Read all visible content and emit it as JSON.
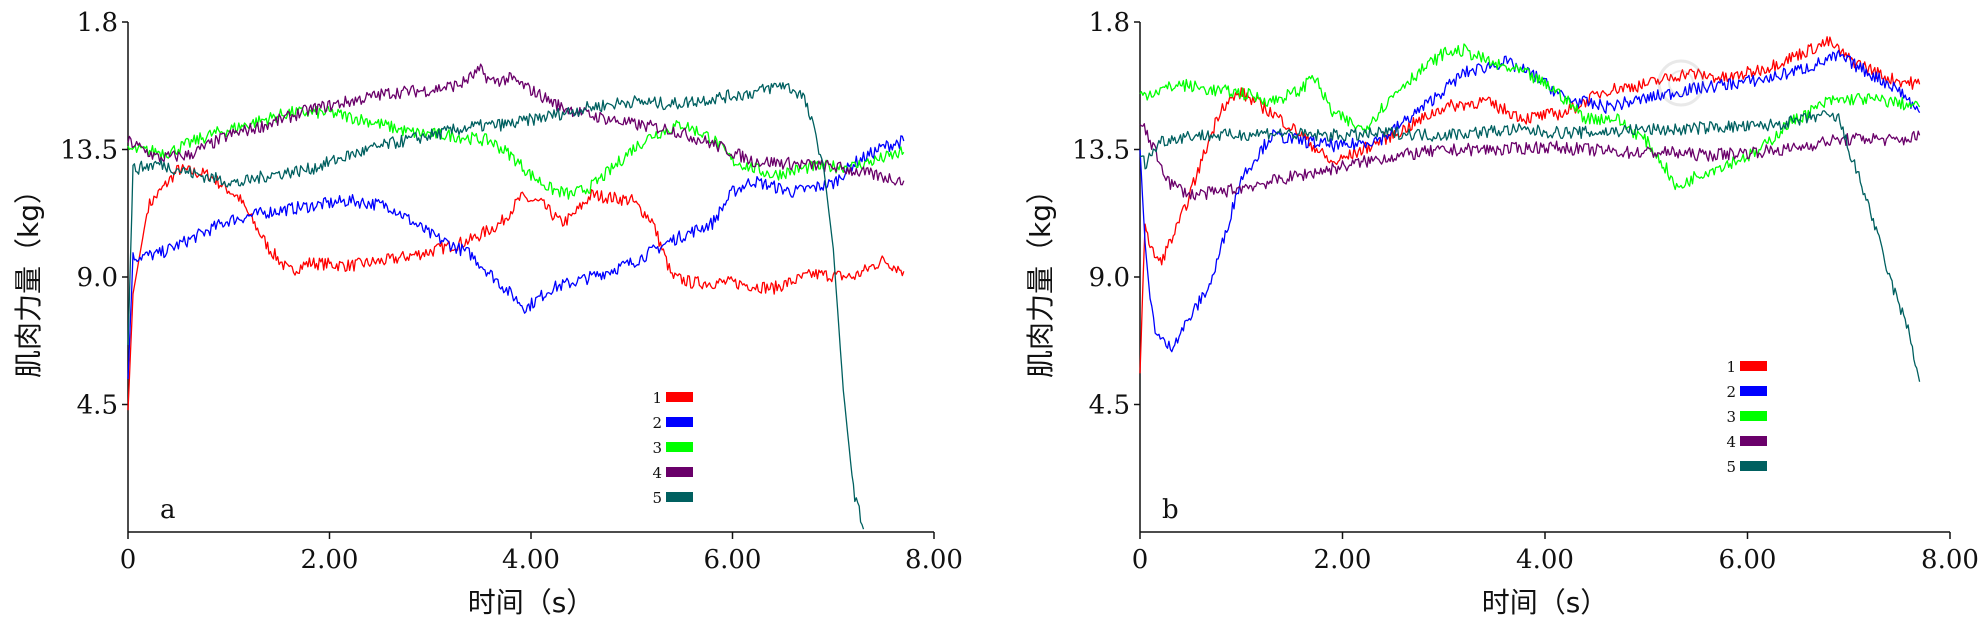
{
  "chart_data": [
    {
      "type": "line",
      "panel_label": "a",
      "xlabel": "时间（s）",
      "ylabel": "肌肉力量（kg）",
      "xlim": [
        0,
        8
      ],
      "ylim": [
        0,
        18
      ],
      "x_tick_labels": [
        "0",
        "2.00",
        "4.00",
        "6.00",
        "8.00"
      ],
      "y_tick_labels": [
        "4.5",
        "9.0",
        "13.5",
        "1.8"
      ],
      "legend_position": "bottom-center",
      "series": [
        {
          "name": "1",
          "color": "#ff0000",
          "x": [
            0,
            0.05,
            0.2,
            0.5,
            0.8,
            1.1,
            1.4,
            1.6,
            1.8,
            2.2,
            2.6,
            3.0,
            3.4,
            3.7,
            3.9,
            4.1,
            4.3,
            4.4,
            4.6,
            5.0,
            5.2,
            5.4,
            5.6,
            6.0,
            6.4,
            6.8,
            7.2,
            7.5,
            7.7
          ],
          "y": [
            4.3,
            8.4,
            11.5,
            12.8,
            12.6,
            11.8,
            10.0,
            9.2,
            9.5,
            9.4,
            9.6,
            9.9,
            10.3,
            10.9,
            11.8,
            11.6,
            10.9,
            11.1,
            11.9,
            11.7,
            11.0,
            9.0,
            8.8,
            8.8,
            8.6,
            9.1,
            9.0,
            9.6,
            9.2
          ]
        },
        {
          "name": "2",
          "color": "#0000ff",
          "x": [
            0,
            0.05,
            0.3,
            0.6,
            1.0,
            1.4,
            1.8,
            2.2,
            2.6,
            3.0,
            3.4,
            3.6,
            3.8,
            3.95,
            4.2,
            4.6,
            5.0,
            5.4,
            5.8,
            6.0,
            6.2,
            6.6,
            7.0,
            7.2,
            7.5,
            7.7
          ],
          "y": [
            5.4,
            9.7,
            9.8,
            10.3,
            11.0,
            11.3,
            11.5,
            11.7,
            11.5,
            10.5,
            9.8,
            9.1,
            8.4,
            7.9,
            8.6,
            9.0,
            9.5,
            10.3,
            10.9,
            12.0,
            12.4,
            12.0,
            12.3,
            13.0,
            13.6,
            13.8
          ]
        },
        {
          "name": "3",
          "color": "#00ff00",
          "x": [
            0,
            0.4,
            0.8,
            1.2,
            1.6,
            2.0,
            2.4,
            2.8,
            3.2,
            3.6,
            3.8,
            4.0,
            4.2,
            4.4,
            4.6,
            4.8,
            5.0,
            5.2,
            5.5,
            5.8,
            6.0,
            6.4,
            6.8,
            7.2,
            7.5,
            7.7
          ],
          "y": [
            13.5,
            13.4,
            14.0,
            14.4,
            14.8,
            14.8,
            14.5,
            14.1,
            14.0,
            13.8,
            13.3,
            12.6,
            12.1,
            11.9,
            12.2,
            12.8,
            13.5,
            14.0,
            14.4,
            13.9,
            13.1,
            12.6,
            12.9,
            12.9,
            13.2,
            13.4
          ]
        },
        {
          "name": "4",
          "color": "#6a006a",
          "x": [
            0,
            0.3,
            0.6,
            1.0,
            1.4,
            1.8,
            2.2,
            2.6,
            3.0,
            3.3,
            3.5,
            3.6,
            3.8,
            4.0,
            4.3,
            4.6,
            5.0,
            5.4,
            5.8,
            6.2,
            6.6,
            7.0,
            7.4,
            7.7
          ],
          "y": [
            13.8,
            13.2,
            13.3,
            14.0,
            14.4,
            14.9,
            15.2,
            15.5,
            15.6,
            15.8,
            16.3,
            15.9,
            16.0,
            15.6,
            15.0,
            14.7,
            14.4,
            14.2,
            13.7,
            13.1,
            13.0,
            12.9,
            12.6,
            12.4
          ]
        },
        {
          "name": "5",
          "color": "#006060",
          "x": [
            0,
            0.05,
            0.3,
            0.7,
            1.1,
            1.4,
            1.8,
            2.2,
            2.6,
            3.0,
            3.4,
            3.8,
            4.2,
            4.6,
            5.0,
            5.4,
            5.8,
            6.2,
            6.5,
            6.7,
            6.8,
            6.9,
            7.0,
            7.1,
            7.2,
            7.3
          ],
          "y": [
            6.6,
            12.8,
            13.0,
            12.6,
            12.3,
            12.6,
            12.8,
            13.3,
            13.7,
            14.0,
            14.3,
            14.4,
            14.7,
            15.0,
            15.2,
            15.1,
            15.3,
            15.5,
            15.8,
            15.4,
            14.3,
            13.0,
            10.0,
            5.0,
            1.5,
            0.1
          ]
        }
      ]
    },
    {
      "type": "line",
      "panel_label": "b",
      "xlabel": "时间（s）",
      "ylabel": "肌肉力量（kg）",
      "xlim": [
        0,
        8
      ],
      "ylim": [
        0,
        18
      ],
      "x_tick_labels": [
        "0",
        "2.00",
        "4.00",
        "6.00",
        "8.00"
      ],
      "y_tick_labels": [
        "4.5",
        "9.0",
        "13.5",
        "1.8"
      ],
      "legend_position": "middle-right",
      "series": [
        {
          "name": "1",
          "color": "#ff0000",
          "x": [
            0,
            0.05,
            0.1,
            0.2,
            0.4,
            0.6,
            0.8,
            1.0,
            1.3,
            1.6,
            1.9,
            2.2,
            2.6,
            3.0,
            3.4,
            3.8,
            4.2,
            4.6,
            5.0,
            5.4,
            5.8,
            6.2,
            6.6,
            6.8,
            7.0,
            7.4,
            7.7
          ],
          "y": [
            5.6,
            11.0,
            10.0,
            9.5,
            11.0,
            13.0,
            15.0,
            15.5,
            14.8,
            14.0,
            13.0,
            13.5,
            14.2,
            15.0,
            15.2,
            14.6,
            14.8,
            15.6,
            15.8,
            16.2,
            16.0,
            16.4,
            17.0,
            17.3,
            16.7,
            16.0,
            15.8
          ]
        },
        {
          "name": "2",
          "color": "#0000ff",
          "x": [
            0,
            0.05,
            0.1,
            0.15,
            0.2,
            0.3,
            0.5,
            0.7,
            0.8,
            1.0,
            1.3,
            1.6,
            2.0,
            2.4,
            2.8,
            3.2,
            3.6,
            3.9,
            4.2,
            4.6,
            5.0,
            5.4,
            5.8,
            6.2,
            6.6,
            6.9,
            7.2,
            7.5,
            7.7
          ],
          "y": [
            13.5,
            10.2,
            8.2,
            7.2,
            6.8,
            6.5,
            7.6,
            8.8,
            10.0,
            12.5,
            14.0,
            13.8,
            13.6,
            13.9,
            15.0,
            16.2,
            16.6,
            16.1,
            15.3,
            15.0,
            15.3,
            15.6,
            15.8,
            16.0,
            16.4,
            16.8,
            16.2,
            15.6,
            14.8
          ]
        },
        {
          "name": "3",
          "color": "#00ff00",
          "x": [
            0,
            0.2,
            0.4,
            0.7,
            1.0,
            1.3,
            1.6,
            1.7,
            1.9,
            2.2,
            2.6,
            3.0,
            3.2,
            3.5,
            3.8,
            4.1,
            4.4,
            4.7,
            5.0,
            5.2,
            5.3,
            5.5,
            5.8,
            6.1,
            6.4,
            6.8,
            7.1,
            7.4,
            7.7
          ],
          "y": [
            15.4,
            15.6,
            15.8,
            15.6,
            15.5,
            15.2,
            15.6,
            16.2,
            14.8,
            14.2,
            15.8,
            16.9,
            17.0,
            16.5,
            16.2,
            15.6,
            14.6,
            14.6,
            13.8,
            12.8,
            12.1,
            12.6,
            13.0,
            13.4,
            14.4,
            15.2,
            15.3,
            15.2,
            15.0
          ]
        },
        {
          "name": "4",
          "color": "#6a006a",
          "x": [
            0,
            0.1,
            0.2,
            0.3,
            0.5,
            0.8,
            1.2,
            1.6,
            2.0,
            2.4,
            2.8,
            3.2,
            3.6,
            4.0,
            4.4,
            4.8,
            5.2,
            5.6,
            6.0,
            6.4,
            6.8,
            7.2,
            7.5,
            7.7
          ],
          "y": [
            14.5,
            13.8,
            13.0,
            12.3,
            11.9,
            12.0,
            12.3,
            12.6,
            12.9,
            13.2,
            13.4,
            13.5,
            13.5,
            13.6,
            13.5,
            13.4,
            13.4,
            13.3,
            13.4,
            13.5,
            13.8,
            13.9,
            13.8,
            14.0
          ]
        },
        {
          "name": "5",
          "color": "#006060",
          "x": [
            0,
            0.05,
            0.2,
            0.5,
            0.9,
            1.3,
            1.7,
            2.1,
            2.5,
            2.9,
            3.3,
            3.7,
            4.1,
            4.5,
            4.9,
            5.3,
            5.7,
            6.1,
            6.5,
            6.7,
            6.9,
            7.0,
            7.2,
            7.4,
            7.5,
            7.6,
            7.7
          ],
          "y": [
            13.3,
            13.0,
            13.8,
            14.0,
            14.0,
            14.1,
            14.0,
            14.0,
            14.1,
            14.0,
            14.1,
            14.2,
            14.1,
            14.1,
            14.2,
            14.2,
            14.3,
            14.3,
            14.5,
            14.7,
            14.6,
            13.5,
            11.5,
            9.0,
            8.0,
            7.0,
            5.3
          ]
        }
      ]
    }
  ],
  "watermark": "中华医学"
}
